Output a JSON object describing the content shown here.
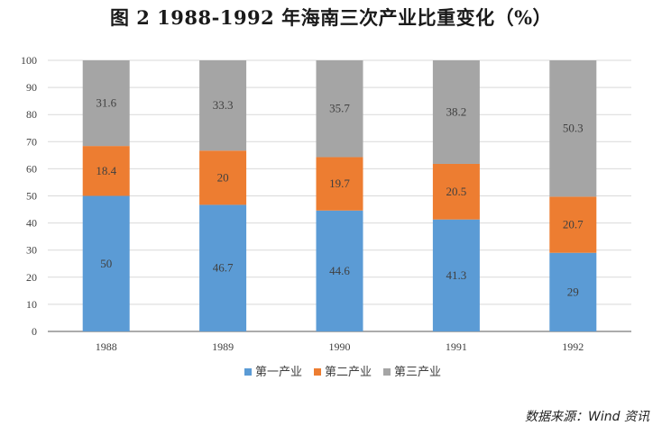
{
  "title": "图 2    1988-1992 年海南三次产业比重变化（%）",
  "source": "数据来源：Wind 资讯",
  "colors": {
    "primary": "#5B9BD5",
    "secondary": "#ED7D31",
    "tertiary": "#A5A5A5",
    "grid": "#D9D9D9",
    "axis": "#595959"
  },
  "chart_data": {
    "type": "bar",
    "stacked": true,
    "title": "图 2    1988-1992 年海南三次产业比重变化（%）",
    "categories": [
      "1988",
      "1989",
      "1990",
      "1991",
      "1992"
    ],
    "series": [
      {
        "name": "第一产业",
        "color": "#5B9BD5",
        "values": [
          50,
          46.7,
          44.6,
          41.3,
          29
        ]
      },
      {
        "name": "第二产业",
        "color": "#ED7D31",
        "values": [
          18.4,
          20,
          19.7,
          20.5,
          20.7
        ]
      },
      {
        "name": "第三产业",
        "color": "#A5A5A5",
        "values": [
          31.6,
          33.3,
          35.7,
          38.2,
          50.3
        ]
      }
    ],
    "ylim": [
      0,
      100
    ],
    "yticks": [
      0,
      10,
      20,
      30,
      40,
      50,
      60,
      70,
      80,
      90,
      100
    ],
    "grid": true,
    "legend": "bottom",
    "xlabel": "",
    "ylabel": ""
  }
}
